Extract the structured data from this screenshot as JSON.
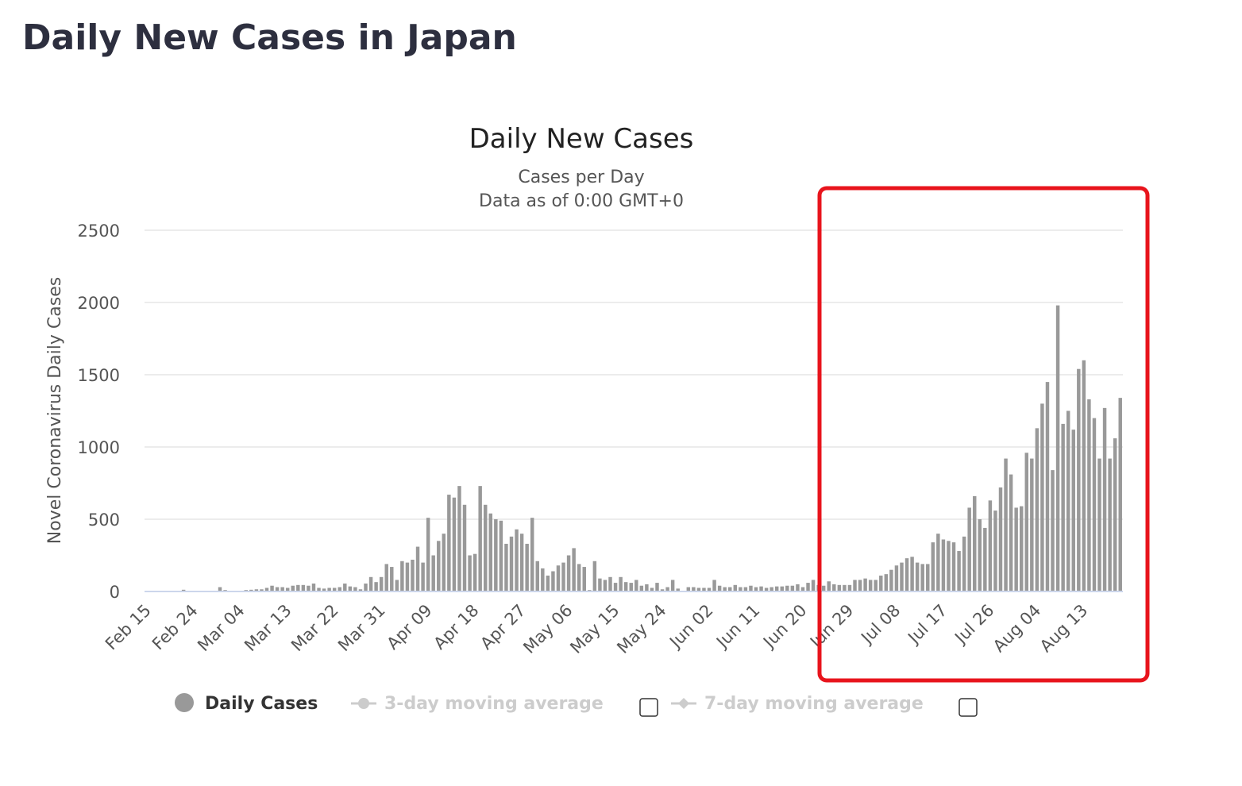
{
  "page": {
    "title": "Daily New Cases in Japan"
  },
  "colors": {
    "bar": "#999999",
    "grid": "#e6e6e6",
    "highlight": "#e8141c",
    "inactive": "#cccccc"
  },
  "chart_data": {
    "type": "bar",
    "title": "Daily New Cases",
    "subtitle_line1": "Cases per Day",
    "subtitle_line2": "Data as of 0:00 GMT+0",
    "ylabel": "Novel Coronavirus Daily Cases",
    "xlabel": "",
    "ylim": [
      0,
      2500
    ],
    "yticks": [
      0,
      500,
      1000,
      1500,
      2000,
      2500
    ],
    "x_start": "Feb 15",
    "x_end": "Aug 15",
    "xtick_labels": [
      "Feb 15",
      "Feb 24",
      "Mar 04",
      "Mar 13",
      "Mar 22",
      "Mar 31",
      "Apr 09",
      "Apr 18",
      "Apr 27",
      "May 06",
      "May 15",
      "May 24",
      "Jun 02",
      "Jun 11",
      "Jun 20",
      "Jun 29",
      "Jul 08",
      "Jul 17",
      "Jul 26",
      "Aug 04",
      "Aug 13"
    ],
    "values": [
      0,
      0,
      0,
      0,
      0,
      0,
      0,
      12,
      0,
      0,
      0,
      0,
      0,
      0,
      30,
      10,
      0,
      0,
      0,
      10,
      12,
      15,
      15,
      25,
      40,
      30,
      30,
      25,
      40,
      45,
      45,
      40,
      55,
      25,
      20,
      25,
      25,
      30,
      55,
      35,
      30,
      15,
      55,
      100,
      65,
      100,
      190,
      170,
      80,
      210,
      200,
      220,
      310,
      200,
      510,
      250,
      350,
      400,
      670,
      650,
      730,
      600,
      250,
      260,
      730,
      600,
      540,
      500,
      490,
      330,
      380,
      430,
      400,
      330,
      510,
      210,
      160,
      110,
      140,
      180,
      200,
      250,
      300,
      190,
      170,
      10,
      210,
      90,
      80,
      100,
      60,
      100,
      65,
      60,
      80,
      40,
      50,
      25,
      60,
      15,
      30,
      80,
      20,
      5,
      30,
      30,
      25,
      25,
      25,
      80,
      40,
      30,
      30,
      45,
      30,
      30,
      40,
      30,
      35,
      25,
      30,
      35,
      35,
      40,
      40,
      50,
      30,
      60,
      80,
      45,
      40,
      70,
      50,
      45,
      45,
      45,
      80,
      80,
      90,
      80,
      80,
      110,
      120,
      150,
      180,
      200,
      230,
      240,
      200,
      190,
      190,
      340,
      400,
      360,
      350,
      340,
      280,
      380,
      580,
      660,
      500,
      440,
      630,
      560,
      720,
      920,
      810,
      580,
      590,
      960,
      920,
      1130,
      1300,
      1450,
      840,
      1980,
      1160,
      1250,
      1120,
      1540,
      1600,
      1330,
      1200,
      920,
      1270,
      920,
      1060,
      1340
    ]
  },
  "legend": [
    {
      "label": "Daily Cases",
      "active": true
    },
    {
      "label": "3-day moving average",
      "active": false
    },
    {
      "label": "7-day moving average",
      "active": false
    }
  ]
}
